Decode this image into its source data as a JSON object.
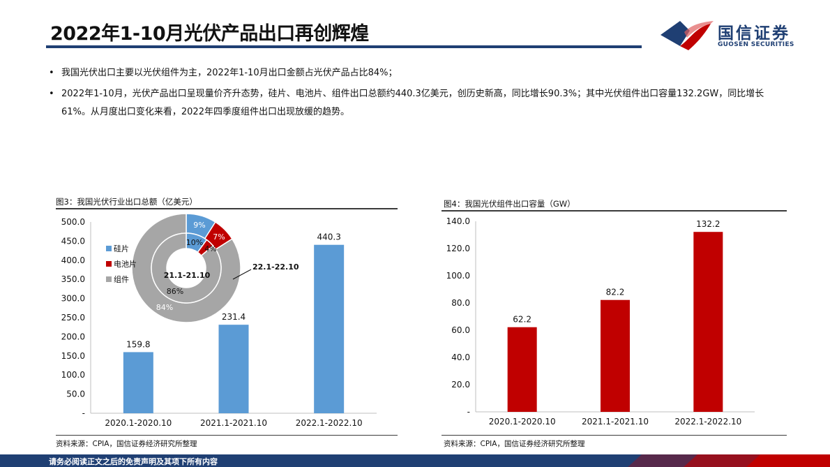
{
  "header": {
    "title": "2022年1-10月光伏产品出口再创辉煌",
    "logo_cn": "国信证券",
    "logo_en": "GUOSEN SECURITIES"
  },
  "bullets": [
    "我国光伏出口主要以光伏组件为主，2022年1-10月出口金额占光伏产品占比84%；",
    "2022年1-10月，光伏产品出口呈现量价齐升态势，硅片、电池片、组件出口总额约440.3亿美元，创历史新高，同比增长90.3%；其中光伏组件出口容量132.2GW，同比增长61%。从月度出口变化来看，2022年四季度组件出口出现放缓的趋势。"
  ],
  "chart_data": [
    {
      "type": "bar",
      "title": "图3：我国光伏行业出口总额（亿美元）",
      "categories": [
        "2020.1-2020.10",
        "2021.1-2021.10",
        "2022.1-2022.10"
      ],
      "values": [
        159.8,
        231.4,
        440.3
      ],
      "value_labels": [
        "159.8",
        "231.4",
        "440.3"
      ],
      "ylim": [
        0,
        500
      ],
      "yticks": [
        "-",
        "50.0",
        "100.0",
        "150.0",
        "200.0",
        "250.0",
        "300.0",
        "350.0",
        "400.0",
        "450.0",
        "500.0"
      ],
      "color": "#5b9bd5",
      "source": "资料来源：CPIA，国信证券经济研究所整理",
      "inset_donut": {
        "type": "pie",
        "legend": [
          "硅片",
          "电池片",
          "组件"
        ],
        "colors": [
          "#5b9bd5",
          "#c00000",
          "#a6a6a6"
        ],
        "outer": {
          "label": "22.1-22.10",
          "values": [
            9,
            7,
            84
          ],
          "labels": [
            "9%",
            "7%",
            "84%"
          ]
        },
        "inner": {
          "label": "21.1-21.10",
          "values": [
            10,
            4,
            86
          ],
          "labels": [
            "10%",
            "4%",
            "86%"
          ]
        }
      }
    },
    {
      "type": "bar",
      "title": "图4：我国光伏组件出口容量（GW）",
      "categories": [
        "2020.1-2020.10",
        "2021.1-2021.10",
        "2022.1-2022.10"
      ],
      "values": [
        62.2,
        82.2,
        132.2
      ],
      "value_labels": [
        "62.2",
        "82.2",
        "132.2"
      ],
      "ylim": [
        0,
        140
      ],
      "yticks": [
        "-",
        "20.0",
        "40.0",
        "60.0",
        "80.0",
        "100.0",
        "120.0",
        "140.0"
      ],
      "color": "#c00000",
      "source": "资料来源：CPIA，国信证券经济研究所整理"
    }
  ],
  "footer": {
    "disclaimer": "请务必阅读正文之后的免责声明及其项下所有内容"
  }
}
